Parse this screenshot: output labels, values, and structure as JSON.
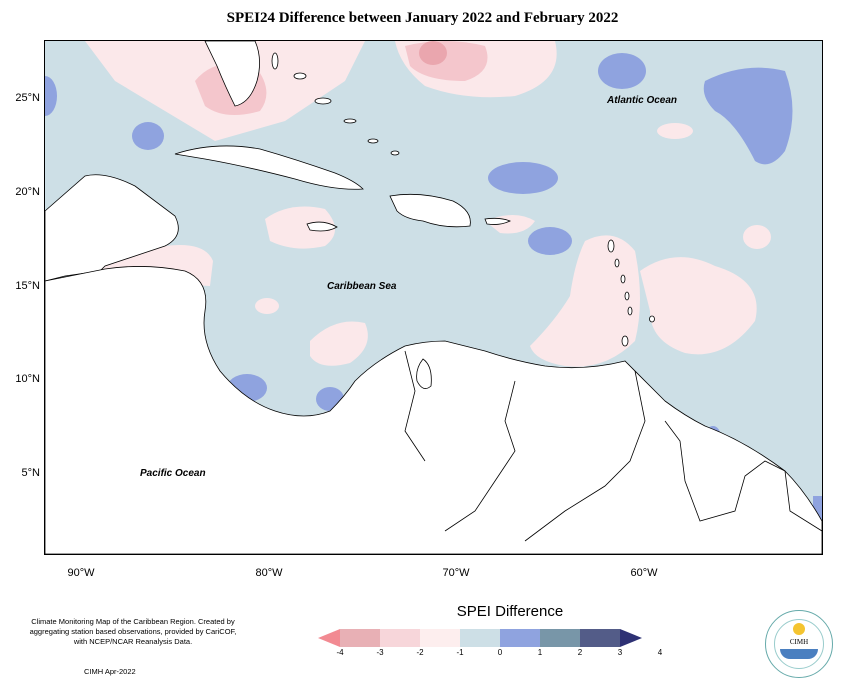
{
  "title": "SPEI24 Difference between January 2022 and February 2022",
  "map": {
    "lat_labels": [
      "25°N",
      "20°N",
      "15°N",
      "10°N",
      "5°N"
    ],
    "lon_labels": [
      "90°W",
      "80°W",
      "70°W",
      "60°W"
    ],
    "ocean_labels": {
      "atlantic": "Atlantic Ocean",
      "caribbean": "Caribbean Sea",
      "pacific": "Pacific Ocean"
    },
    "colors": {
      "neutral_pos": "#cddfe6",
      "neutral_neg": "#fbe8ea",
      "neg1": "#f4c6cc",
      "neg2": "#eaa6ae",
      "pos1": "#8fa3df",
      "land": "#ffffff"
    }
  },
  "legend": {
    "title": "SPEI Difference",
    "ticks": [
      "-4",
      "-3",
      "-2",
      "-1",
      "0",
      "1",
      "2",
      "3",
      "4"
    ],
    "colors": [
      "#f28a92",
      "#e8b0b5",
      "#f7d6da",
      "#fdeeee",
      "#cddfe6",
      "#8fa3df",
      "#7896a8",
      "#535c88",
      "#2e3174"
    ]
  },
  "credit": {
    "text": "Climate Monitoring Map of the Caribbean Region. Created by aggregating station based observations, provided by CariCOF, with NCEP/NCAR Reanalysis Data.",
    "footer": "CIMH Apr-2022"
  },
  "logo": {
    "label": "CIMH"
  }
}
